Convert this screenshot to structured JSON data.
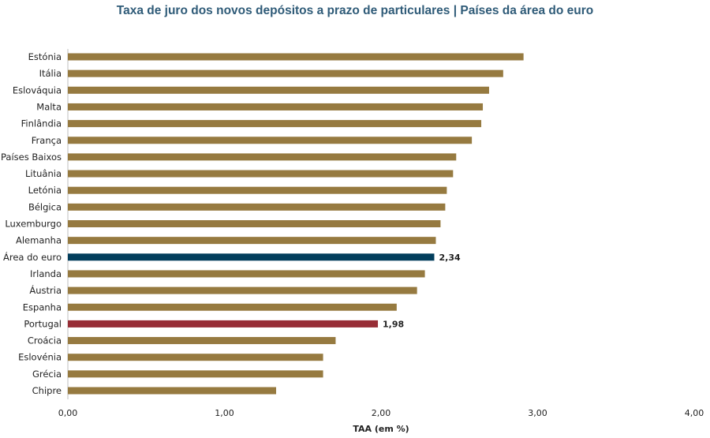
{
  "chart_data": {
    "type": "bar",
    "orientation": "horizontal",
    "title": "Taxa de juro dos novos depósitos a prazo de particulares | Países da área do euro",
    "xlabel": "TAA (em %)",
    "ylabel": "",
    "xlim": [
      0,
      4
    ],
    "xticks": [
      "0,00",
      "1,00",
      "2,00",
      "3,00",
      "4,00"
    ],
    "grid": false,
    "categories": [
      "Estónia",
      "Itália",
      "Eslováquia",
      "Malta",
      "Finlândia",
      "França",
      "Países Baixos",
      "Lituânia",
      "Letónia",
      "Bélgica",
      "Luxemburgo",
      "Alemanha",
      "Área do euro",
      "Irlanda",
      "Áustria",
      "Espanha",
      "Portugal",
      "Croácia",
      "Eslovénia",
      "Grécia",
      "Chipre"
    ],
    "values": [
      2.91,
      2.78,
      2.69,
      2.65,
      2.64,
      2.58,
      2.48,
      2.46,
      2.42,
      2.41,
      2.38,
      2.35,
      2.34,
      2.28,
      2.23,
      2.1,
      1.98,
      1.71,
      1.63,
      1.63,
      1.33
    ],
    "data_labels": {
      "Área do euro": "2,34",
      "Portugal": "1,98"
    },
    "colors": {
      "default": "#967a40",
      "Área do euro": "#023e5c",
      "Portugal": "#972d36"
    }
  }
}
